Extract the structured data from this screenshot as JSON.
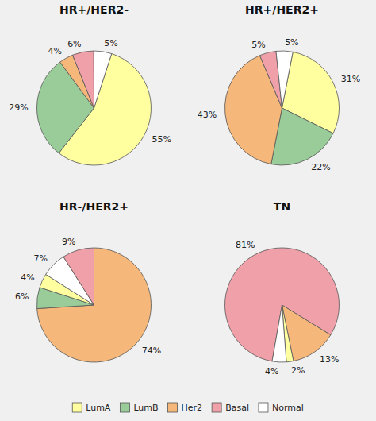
{
  "chart_data": [
    {
      "type": "pie",
      "title": "HR+/HER2-",
      "categories": [
        "LumA",
        "LumB",
        "Her2",
        "Basal",
        "Normal"
      ],
      "values": [
        55,
        29,
        4,
        6,
        5
      ],
      "value_labels": [
        "55%",
        "29%",
        "4%",
        "6%",
        "5%"
      ],
      "colors": [
        "#ffffa0",
        "#99cc99",
        "#f5b87a",
        "#f0a0a8",
        "#ffffff"
      ],
      "data_labels": true,
      "legend": "bottom"
    },
    {
      "type": "pie",
      "title": "HR+/HER2+",
      "categories": [
        "LumA",
        "LumB",
        "Her2",
        "Basal",
        "Normal"
      ],
      "values": [
        31,
        22,
        43,
        5,
        5
      ],
      "value_labels": [
        "31%",
        "22%",
        "43%",
        "5%",
        "5%"
      ],
      "colors": [
        "#ffffa0",
        "#99cc99",
        "#f5b87a",
        "#f0a0a8",
        "#ffffff"
      ],
      "data_labels": true,
      "legend": "bottom"
    },
    {
      "type": "pie",
      "title": "HR-/HER2+",
      "categories": [
        "Her2",
        "LumB",
        "LumA",
        "Normal",
        "Basal"
      ],
      "values": [
        74,
        6,
        4,
        7,
        9
      ],
      "value_labels": [
        "74%",
        "6%",
        "4%",
        "7%",
        "9%"
      ],
      "colors": [
        "#f5b87a",
        "#99cc99",
        "#ffffa0",
        "#ffffff",
        "#f0a0a8"
      ],
      "data_labels": true,
      "legend": "bottom"
    },
    {
      "type": "pie",
      "title": "TN",
      "categories": [
        "Basal",
        "Her2",
        "LumA",
        "Normal"
      ],
      "values": [
        81,
        13,
        2,
        4
      ],
      "value_labels": [
        "81%",
        "13%",
        "2%",
        "4%"
      ],
      "colors": [
        "#f0a0a8",
        "#f5b87a",
        "#ffffa0",
        "#ffffff"
      ],
      "data_labels": true,
      "legend": "bottom"
    }
  ]
}
